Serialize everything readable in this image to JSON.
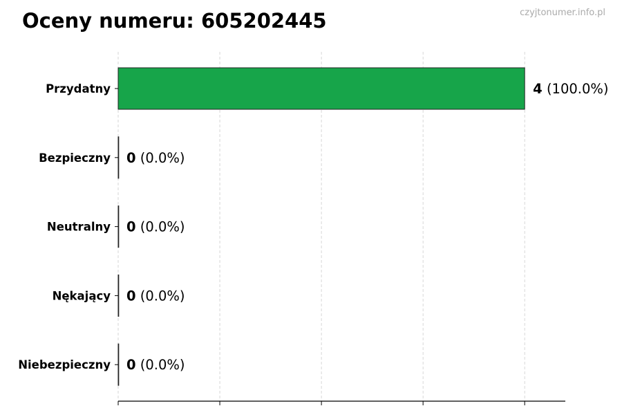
{
  "watermark": "czyjtonumer.info.pl",
  "chart_data": {
    "type": "bar",
    "orientation": "horizontal",
    "title": "Oceny numeru: 605202445",
    "categories": [
      "Przydatny",
      "Bezpieczny",
      "Neutralny",
      "Nękający",
      "Niebezpieczny"
    ],
    "values": [
      4,
      0,
      0,
      0,
      0
    ],
    "percent_labels": [
      "(100.0%)",
      "(0.0%)",
      "(0.0%)",
      "(0.0%)",
      "(0.0%)"
    ],
    "bar_color": "#17a54a",
    "xlim": [
      0,
      4.4
    ],
    "x_ticks": [
      0,
      1,
      2,
      3,
      4
    ],
    "grid": "vertical dashed",
    "xlabel": "",
    "ylabel": ""
  }
}
